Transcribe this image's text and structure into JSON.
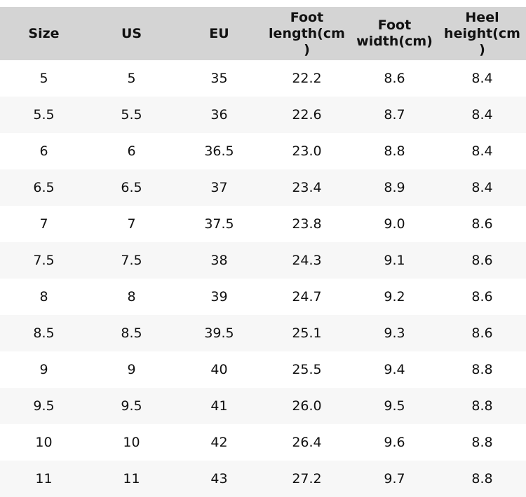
{
  "table": {
    "header": [
      "Size",
      "US",
      "EU",
      "Foot length(cm)",
      "Foot width(cm)",
      "Heel height(cm)"
    ],
    "rows": [
      [
        "5",
        "5",
        "35",
        "22.2",
        "8.6",
        "8.4"
      ],
      [
        "5.5",
        "5.5",
        "36",
        "22.6",
        "8.7",
        "8.4"
      ],
      [
        "6",
        "6",
        "36.5",
        "23.0",
        "8.8",
        "8.4"
      ],
      [
        "6.5",
        "6.5",
        "37",
        "23.4",
        "8.9",
        "8.4"
      ],
      [
        "7",
        "7",
        "37.5",
        "23.8",
        "9.0",
        "8.6"
      ],
      [
        "7.5",
        "7.5",
        "38",
        "24.3",
        "9.1",
        "8.6"
      ],
      [
        "8",
        "8",
        "39",
        "24.7",
        "9.2",
        "8.6"
      ],
      [
        "8.5",
        "8.5",
        "39.5",
        "25.1",
        "9.3",
        "8.6"
      ],
      [
        "9",
        "9",
        "40",
        "25.5",
        "9.4",
        "8.8"
      ],
      [
        "9.5",
        "9.5",
        "41",
        "26.0",
        "9.5",
        "8.8"
      ],
      [
        "10",
        "10",
        "42",
        "26.4",
        "9.6",
        "8.8"
      ],
      [
        "11",
        "11",
        "43",
        "27.2",
        "9.7",
        "8.8"
      ]
    ]
  }
}
